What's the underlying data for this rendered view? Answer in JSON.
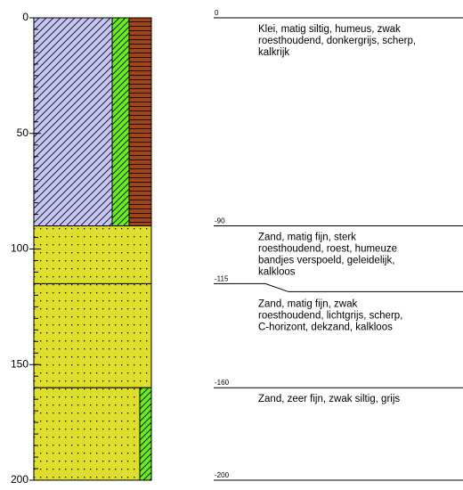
{
  "depth_axis": {
    "ylim": [
      0,
      200
    ],
    "yticks": [
      0,
      50,
      100,
      150,
      200
    ],
    "minor_tick_step": 5
  },
  "layers": [
    {
      "top": 0,
      "description": [
        "Klei, matig siltig, humeus, zwak",
        "roesthoudend, donkergrijs, scherp,",
        "kalkrijk"
      ]
    },
    {
      "top": -90,
      "description": [
        "Zand, matig fijn, sterk",
        "roesthoudend, roest, humeuze",
        "bandjes verspoeld, geleidelijk,",
        "kalkloos"
      ]
    },
    {
      "top": -115,
      "description": [
        "Zand, matig fijn, zwak",
        "roesthoudend, lichtgrijs, scherp,",
        "C-horizont, dekzand, kalkloos"
      ]
    },
    {
      "top": -160,
      "description": [
        "Zand, zeer fijn, zwak siltig, grijs"
      ]
    }
  ],
  "base": -200
}
